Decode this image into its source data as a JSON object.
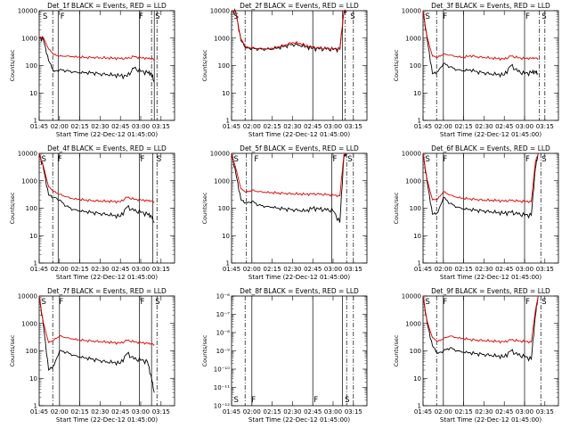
{
  "xticks": [
    "01:45",
    "02:00",
    "02:15",
    "02:30",
    "02:45",
    "03:00",
    "03:15"
  ],
  "xlabel": "Start Time (22-Dec-12 01:45:00)",
  "ylabel": "Counts/sec",
  "colors": {
    "events": "#000000",
    "lld": "#e00000"
  },
  "chart_data": [
    {
      "type": "line",
      "title": "Det_1f BLACK = Events, RED = LLD",
      "ylim": [
        1,
        10000
      ],
      "yscale": "log",
      "yticks": [
        "1",
        "10",
        "100",
        "1000",
        "10000"
      ],
      "x": [
        "01:45",
        "01:48",
        "01:52",
        "01:56",
        "02:00",
        "02:05",
        "02:10",
        "02:15",
        "02:20",
        "02:25",
        "02:30",
        "02:35",
        "02:40",
        "02:45",
        "02:50",
        "02:55",
        "03:00",
        "03:05",
        "03:08",
        "03:10"
      ],
      "series": [
        {
          "values": [
            1000,
            900,
            150,
            60,
            70,
            65,
            58,
            55,
            55,
            55,
            50,
            48,
            45,
            42,
            40,
            80,
            60,
            55,
            50,
            25
          ]
        },
        {
          "values": [
            1100,
            1050,
            400,
            250,
            220,
            220,
            210,
            205,
            200,
            200,
            195,
            190,
            185,
            180,
            180,
            210,
            190,
            185,
            180,
            170
          ]
        }
      ],
      "markers": {
        "s_positions": [
          "01:47",
          "03:10"
        ],
        "f_positions": [
          "02:00",
          "02:58"
        ]
      },
      "vlines_solid": [
        "01:59",
        "02:15",
        "02:59",
        "03:10"
      ],
      "vlines_dash": [
        "01:55",
        "03:08",
        "03:12"
      ]
    },
    {
      "type": "line",
      "title": "Det_2f BLACK = Events, RED = LLD",
      "ylim": [
        1,
        10000
      ],
      "yscale": "log",
      "yticks": [
        "1",
        "10",
        "100",
        "1000",
        "10000"
      ],
      "x": [
        "01:45",
        "01:48",
        "01:52",
        "01:56",
        "02:00",
        "02:05",
        "02:10",
        "02:15",
        "02:20",
        "02:25",
        "02:30",
        "02:35",
        "02:40",
        "02:45",
        "02:50",
        "02:55",
        "03:00",
        "03:05",
        "03:08",
        "03:10"
      ],
      "series": [
        {
          "values": [
            10000,
            9000,
            800,
            430,
            420,
            400,
            390,
            400,
            450,
            520,
            600,
            560,
            480,
            420,
            400,
            390,
            380,
            390,
            9000,
            10000
          ]
        },
        {
          "values": [
            10000,
            9500,
            900,
            460,
            440,
            420,
            410,
            430,
            500,
            580,
            700,
            650,
            540,
            460,
            430,
            420,
            410,
            420,
            9500,
            10000
          ]
        }
      ],
      "markers": {
        "s_positions": [
          "01:46",
          "03:12"
        ],
        "f_positions": []
      },
      "vlines_solid": [
        "02:00",
        "02:45",
        "03:07"
      ],
      "vlines_dash": [
        "01:55",
        "03:09",
        "03:15"
      ]
    },
    {
      "type": "line",
      "title": "Det_3f BLACK = Events, RED = LLD",
      "ylim": [
        1,
        10000
      ],
      "yscale": "log",
      "yticks": [
        "1",
        "10",
        "100",
        "1000",
        "10000"
      ],
      "x": [
        "01:45",
        "01:48",
        "01:52",
        "01:56",
        "02:00",
        "02:05",
        "02:10",
        "02:15",
        "02:20",
        "02:25",
        "02:30",
        "02:35",
        "02:40",
        "02:45",
        "02:50",
        "02:55",
        "03:00",
        "03:05",
        "03:08",
        "03:10"
      ],
      "series": [
        {
          "values": [
            10000,
            900,
            50,
            60,
            120,
            90,
            70,
            65,
            70,
            60,
            55,
            50,
            48,
            45,
            100,
            60,
            50,
            55,
            60,
            50
          ]
        },
        {
          "values": [
            10000,
            1100,
            220,
            200,
            260,
            240,
            210,
            200,
            230,
            210,
            200,
            190,
            180,
            170,
            220,
            190,
            180,
            185,
            190,
            180
          ]
        }
      ],
      "markers": {
        "s_positions": [
          "01:46",
          "03:12"
        ],
        "f_positions": [
          "01:59",
          "03:00"
        ]
      },
      "vlines_solid": [
        "02:00",
        "02:15",
        "03:00"
      ],
      "vlines_dash": [
        "01:55",
        "03:11",
        "03:15"
      ]
    },
    {
      "type": "line",
      "title": "Det_4f BLACK = Events, RED = LLD",
      "ylim": [
        1,
        10000
      ],
      "yscale": "log",
      "yticks": [
        "1",
        "10",
        "100",
        "1000",
        "10000"
      ],
      "x": [
        "01:45",
        "01:48",
        "01:52",
        "01:56",
        "02:00",
        "02:05",
        "02:10",
        "02:15",
        "02:20",
        "02:25",
        "02:30",
        "02:35",
        "02:40",
        "02:45",
        "02:50",
        "02:55",
        "03:00",
        "03:05",
        "03:08",
        "03:10"
      ],
      "series": [
        {
          "values": [
            10000,
            3000,
            300,
            250,
            200,
            120,
            90,
            80,
            75,
            70,
            65,
            60,
            55,
            50,
            110,
            80,
            70,
            60,
            50,
            30
          ]
        },
        {
          "values": [
            10000,
            3500,
            600,
            400,
            320,
            260,
            220,
            210,
            200,
            190,
            185,
            180,
            175,
            170,
            250,
            210,
            200,
            190,
            185,
            170
          ]
        }
      ],
      "markers": {
        "s_positions": [
          "01:46",
          "03:11"
        ],
        "f_positions": [
          "01:58",
          "02:59"
        ]
      },
      "vlines_solid": [
        "01:59",
        "02:15",
        "02:59",
        "03:09"
      ],
      "vlines_dash": [
        "01:55",
        "03:12"
      ]
    },
    {
      "type": "line",
      "title": "Det_5f BLACK = Events, RED = LLD",
      "ylim": [
        1,
        10000
      ],
      "yscale": "log",
      "yticks": [
        "1",
        "10",
        "100",
        "1000",
        "10000"
      ],
      "x": [
        "01:45",
        "01:48",
        "01:52",
        "01:56",
        "02:00",
        "02:05",
        "02:10",
        "02:15",
        "02:20",
        "02:25",
        "02:30",
        "02:35",
        "02:40",
        "02:45",
        "02:50",
        "02:55",
        "03:00",
        "03:05",
        "03:08",
        "03:10"
      ],
      "series": [
        {
          "values": [
            10000,
            2000,
            200,
            150,
            180,
            130,
            115,
            110,
            100,
            95,
            90,
            85,
            80,
            100,
            90,
            85,
            80,
            30,
            8000,
            10000
          ]
        },
        {
          "values": [
            10000,
            3000,
            500,
            380,
            450,
            400,
            380,
            370,
            360,
            350,
            340,
            330,
            320,
            330,
            320,
            310,
            300,
            280,
            9000,
            10000
          ]
        }
      ],
      "markers": {
        "s_positions": [
          "01:46",
          "03:10"
        ],
        "f_positions": [
          "02:01",
          "02:59"
        ]
      },
      "vlines_solid": [
        "02:00",
        "02:59"
      ],
      "vlines_dash": [
        "01:56",
        "03:10",
        "03:15"
      ]
    },
    {
      "type": "line",
      "title": "Det_6f BLACK = Events, RED = LLD",
      "ylim": [
        1,
        10000
      ],
      "yscale": "log",
      "yticks": [
        "1",
        "10",
        "100",
        "1000",
        "10000"
      ],
      "x": [
        "01:45",
        "01:48",
        "01:52",
        "01:56",
        "02:00",
        "02:05",
        "02:10",
        "02:15",
        "02:20",
        "02:25",
        "02:30",
        "02:35",
        "02:40",
        "02:45",
        "02:50",
        "02:55",
        "03:00",
        "03:05",
        "03:08",
        "03:10"
      ],
      "series": [
        {
          "values": [
            10000,
            900,
            60,
            70,
            250,
            150,
            110,
            95,
            90,
            85,
            80,
            75,
            70,
            65,
            70,
            60,
            55,
            55,
            3000,
            10000
          ]
        },
        {
          "values": [
            10000,
            1100,
            200,
            220,
            400,
            300,
            250,
            230,
            220,
            210,
            200,
            195,
            190,
            180,
            190,
            180,
            175,
            175,
            5000,
            10000
          ]
        }
      ],
      "markers": {
        "s_positions": [
          "01:46",
          "03:12"
        ],
        "f_positions": [
          "01:59",
          "03:00"
        ]
      },
      "vlines_solid": [
        "02:00",
        "02:15",
        "03:00"
      ],
      "vlines_dash": [
        "01:55",
        "03:12"
      ]
    },
    {
      "type": "line",
      "title": "Det_7f BLACK = Events, RED = LLD",
      "ylim": [
        1,
        10000
      ],
      "yscale": "log",
      "yticks": [
        "1",
        "10",
        "100",
        "1000",
        "10000"
      ],
      "x": [
        "01:45",
        "01:48",
        "01:52",
        "01:56",
        "02:00",
        "02:05",
        "02:10",
        "02:15",
        "02:20",
        "02:25",
        "02:30",
        "02:35",
        "02:40",
        "02:45",
        "02:50",
        "02:55",
        "03:00",
        "03:05",
        "03:08",
        "03:10"
      ],
      "series": [
        {
          "values": [
            10000,
            900,
            20,
            30,
            100,
            90,
            70,
            60,
            55,
            50,
            45,
            40,
            38,
            35,
            80,
            50,
            45,
            40,
            10,
            3
          ]
        },
        {
          "values": [
            10000,
            1100,
            200,
            250,
            350,
            300,
            270,
            250,
            240,
            230,
            220,
            210,
            200,
            190,
            240,
            210,
            200,
            190,
            180,
            170
          ]
        }
      ],
      "markers": {
        "s_positions": [
          "01:46",
          "03:10"
        ],
        "f_positions": [
          "01:59",
          "02:59"
        ]
      },
      "vlines_solid": [
        "02:00",
        "02:15",
        "02:59",
        "03:08"
      ],
      "vlines_dash": [
        "01:55",
        "03:12"
      ]
    },
    {
      "type": "line",
      "title": "Det_8f BLACK = Events, RED = LLD",
      "ylim": [
        1e-12,
        1e-06
      ],
      "yscale": "log",
      "yticks": [
        "10⁻¹²",
        "10⁻¹¹",
        "10⁻¹⁰",
        "10⁻⁹",
        "10⁻⁸",
        "10⁻⁷",
        "10⁻⁶"
      ],
      "x": [],
      "series": [],
      "markers": {
        "s_positions": [
          "01:46",
          "03:08"
        ],
        "f_positions": [
          "01:59",
          "02:45"
        ]
      },
      "vlines_solid": [
        "02:00",
        "02:45",
        "03:07"
      ],
      "vlines_dash": [
        "01:55",
        "03:10",
        "03:15"
      ]
    },
    {
      "type": "line",
      "title": "Det_9f BLACK = Events, RED = LLD",
      "ylim": [
        1,
        10000
      ],
      "yscale": "log",
      "yticks": [
        "1",
        "10",
        "100",
        "1000",
        "10000"
      ],
      "x": [
        "01:45",
        "01:48",
        "01:52",
        "01:56",
        "02:00",
        "02:05",
        "02:10",
        "02:15",
        "02:20",
        "02:25",
        "02:30",
        "02:35",
        "02:40",
        "02:45",
        "02:50",
        "02:55",
        "03:00",
        "03:05",
        "03:08",
        "03:10"
      ],
      "series": [
        {
          "values": [
            10000,
            1000,
            150,
            80,
            100,
            130,
            100,
            90,
            85,
            80,
            75,
            70,
            65,
            60,
            100,
            70,
            60,
            50,
            2000,
            10000
          ]
        },
        {
          "values": [
            10000,
            1200,
            300,
            220,
            280,
            350,
            300,
            280,
            260,
            250,
            240,
            230,
            220,
            210,
            250,
            230,
            220,
            210,
            3000,
            10000
          ]
        }
      ],
      "markers": {
        "s_positions": [
          "01:46",
          "03:12"
        ],
        "f_positions": [
          "01:59",
          "03:00"
        ]
      },
      "vlines_solid": [
        "02:00",
        "02:15",
        "03:00"
      ],
      "vlines_dash": [
        "01:55",
        "03:12"
      ]
    }
  ]
}
